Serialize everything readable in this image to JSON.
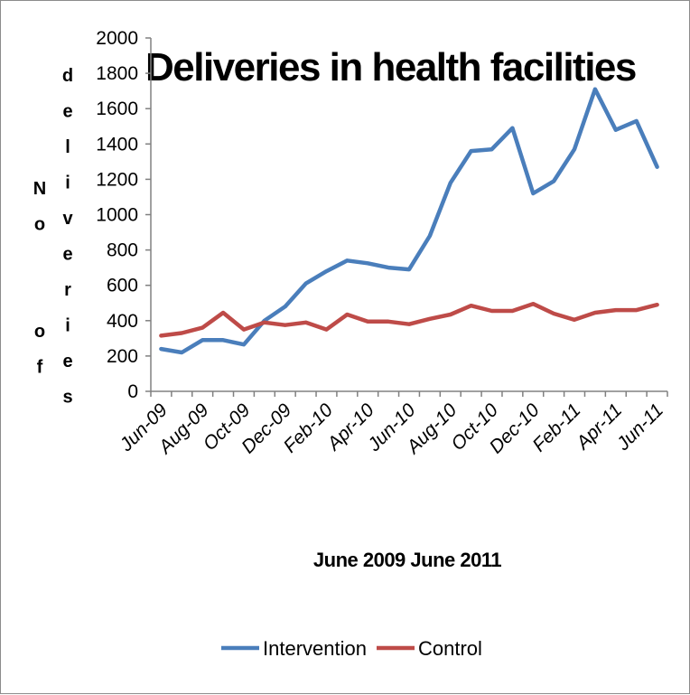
{
  "chart_data": {
    "type": "line",
    "title": "Deliveries in health facilities",
    "xlabel": "June 2009 June 2011",
    "ylabel": "No of deliveries",
    "ylim": [
      0,
      2000
    ],
    "yticks": [
      "0",
      "200",
      "400",
      "600",
      "800",
      "1000",
      "1200",
      "1400",
      "1600",
      "1800",
      "2000"
    ],
    "x": [
      "Jun-09",
      "Jul-09",
      "Aug-09",
      "Sep-09",
      "Oct-09",
      "Nov-09",
      "Dec-09",
      "Jan-10",
      "Feb-10",
      "Mar-10",
      "Apr-10",
      "May-10",
      "Jun-10",
      "Jul-10",
      "Aug-10",
      "Sep-10",
      "Oct-10",
      "Nov-10",
      "Dec-10",
      "Jan-11",
      "Feb-11",
      "Mar-11",
      "Apr-11",
      "May-11",
      "Jun-11"
    ],
    "xtick_labels": [
      "Jun-09",
      "Aug-09",
      "Oct-09",
      "Dec-09",
      "Feb-10",
      "Apr-10",
      "Jun-10",
      "Aug-10",
      "Oct-10",
      "Dec-10",
      "Feb-11",
      "Apr-11",
      "Jun-11"
    ],
    "series": [
      {
        "name": "Intervention",
        "color": "#4a7ebb",
        "values": [
          240,
          220,
          290,
          290,
          265,
          400,
          480,
          610,
          680,
          740,
          725,
          700,
          690,
          880,
          1180,
          1360,
          1370,
          1490,
          1120,
          1190,
          1370,
          1710,
          1480,
          1530,
          1270
        ]
      },
      {
        "name": "Control",
        "color": "#be4b48",
        "values": [
          315,
          330,
          360,
          445,
          350,
          390,
          375,
          390,
          350,
          435,
          395,
          395,
          380,
          410,
          435,
          485,
          455,
          455,
          495,
          440,
          405,
          445,
          460,
          460,
          490
        ]
      }
    ],
    "legend": "bottom",
    "grid": false
  }
}
